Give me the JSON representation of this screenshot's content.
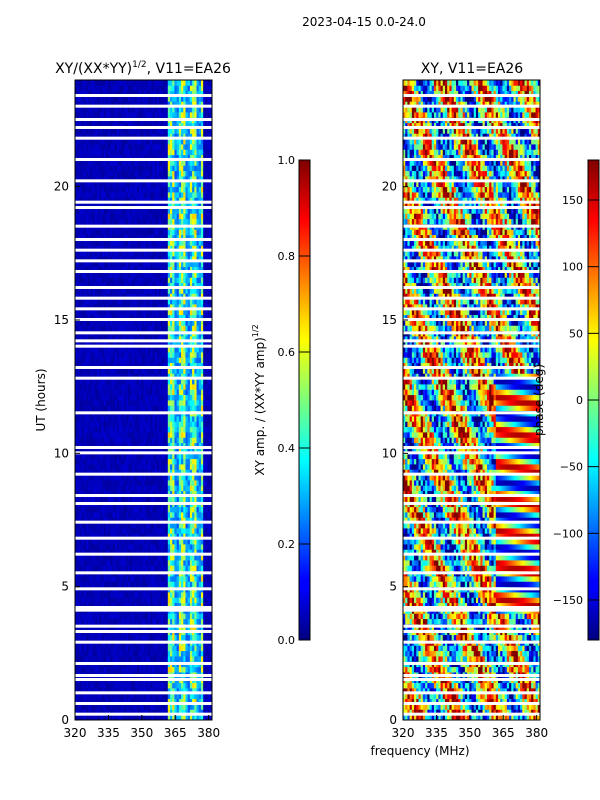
{
  "figure": {
    "suptitle": "2023-04-15 0.0-24.0",
    "xlabel_shared": "frequency (MHz)"
  },
  "chart_data": [
    {
      "type": "heatmap",
      "title_prefix": "XY/(XX*YY)",
      "title_exponent": "1/2",
      "title_suffix": ", V11=EA26",
      "ylabel": "UT (hours)",
      "xlim": [
        320,
        381.5
      ],
      "ylim": [
        0,
        24
      ],
      "xticks": [
        320,
        335,
        350,
        365,
        380
      ],
      "yticks": [
        0,
        5,
        10,
        15,
        20
      ],
      "colorbar": {
        "label_prefix": "XY amp. / (XX*YY amp)",
        "label_exponent": "1/2",
        "range": [
          0.0,
          1.0
        ],
        "ticks": [
          "0.0",
          "0.2",
          "0.4",
          "0.6",
          "0.8",
          "1.0"
        ],
        "tick_values": [
          0.0,
          0.2,
          0.4,
          0.6,
          0.8,
          1.0
        ],
        "colormap": "jet"
      },
      "background_value": 0.03,
      "active_band_mhz": [
        362,
        378
      ],
      "active_band_value": 0.45,
      "flagged_ut_hours": [
        0.2,
        0.6,
        1.0,
        1.5,
        1.65,
        2.1,
        2.9,
        3.3,
        3.5,
        4.1,
        4.2,
        4.9,
        5.5,
        6.2,
        6.8,
        7.4,
        8.1,
        8.4,
        9.2,
        10.0,
        10.2,
        11.5,
        12.8,
        13.2,
        14.0,
        14.2,
        14.5,
        15.0,
        15.4,
        15.8,
        16.2,
        16.8,
        17.2,
        17.6,
        18.0,
        18.5,
        19.2,
        19.4,
        20.2,
        21.0,
        21.8,
        22.2,
        22.5,
        23.0,
        23.4
      ]
    },
    {
      "type": "heatmap",
      "title": "XY, V11=EA26",
      "ylabel": "",
      "xlim": [
        320,
        381.5
      ],
      "ylim": [
        0,
        24
      ],
      "xticks": [
        320,
        335,
        350,
        365,
        380
      ],
      "yticks": [
        0,
        5,
        10,
        15,
        20
      ],
      "colorbar": {
        "label": "phase (deg)",
        "range": [
          -180,
          180
        ],
        "ticks": [
          "150",
          "100",
          "50",
          "0",
          "−50",
          "−100",
          "−150"
        ],
        "tick_values": [
          150,
          100,
          50,
          0,
          -50,
          -100,
          -150
        ],
        "colormap": "jet"
      },
      "flagged_ut_hours": [
        0.2,
        0.6,
        1.0,
        1.5,
        1.65,
        2.1,
        2.9,
        3.3,
        3.5,
        4.1,
        4.2,
        4.9,
        5.5,
        6.2,
        6.8,
        7.4,
        8.1,
        8.4,
        9.2,
        10.0,
        10.2,
        11.5,
        12.8,
        13.2,
        14.0,
        14.2,
        14.5,
        15.0,
        15.4,
        15.8,
        16.2,
        16.8,
        17.2,
        17.6,
        18.0,
        18.5,
        19.2,
        19.4,
        20.2,
        21.0,
        21.8,
        22.2,
        22.5,
        23.0,
        23.4
      ]
    }
  ]
}
